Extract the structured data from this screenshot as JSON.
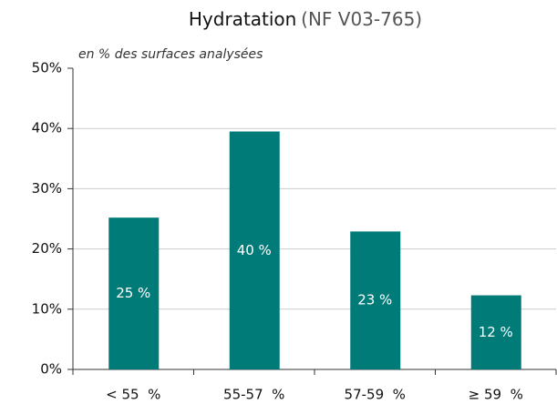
{
  "chart_data": {
    "type": "bar",
    "title": "Hydratation",
    "title_note": "(NF V03-765)",
    "subtitle": "en % des surfaces analysées",
    "categories": [
      "< 55  %",
      "55-57  %",
      "57-59  %",
      "≥ 59  %"
    ],
    "values": [
      25.2,
      39.5,
      22.9,
      12.3
    ],
    "value_labels": [
      "25 %",
      "40 %",
      "23 %",
      "12 %"
    ],
    "color": "#007b78",
    "ylim": [
      0,
      50
    ],
    "yticks": [
      {
        "value": 0,
        "label": "0%"
      },
      {
        "value": 10,
        "label": "10%"
      },
      {
        "value": 20,
        "label": "20%"
      },
      {
        "value": 30,
        "label": "30%"
      },
      {
        "value": 40,
        "label": "40%"
      },
      {
        "value": 50,
        "label": "50%"
      }
    ],
    "grid": true
  }
}
